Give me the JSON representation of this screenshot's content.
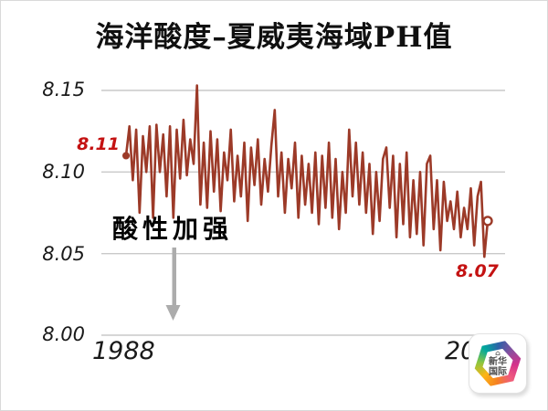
{
  "colors": {
    "background": "#FFFFFF",
    "gridline": "#C9C9C9",
    "line": "#9C3A28",
    "point_label_red": "#C41212",
    "arrow_gray": "#ACACAC"
  },
  "chart_data": {
    "type": "line",
    "title": "海洋酸度–夏威夷海域PH值",
    "xlabel": "",
    "ylabel": "",
    "grid": "horizontal",
    "legend": "none",
    "ylim": [
      8.0,
      8.15
    ],
    "y_tick_labels": [
      "8.15",
      "8.10",
      "8.05",
      "8.00"
    ],
    "y_tick_values": [
      8.15,
      8.1,
      8.05,
      8.0
    ],
    "x_tick_labels": [
      "1988",
      "20"
    ],
    "x_range_years": [
      1988,
      2015
    ],
    "series": [
      {
        "name": "夏威夷海域PH值",
        "color": "#9C3A28",
        "values": [
          8.11,
          8.128,
          8.095,
          8.126,
          8.075,
          8.122,
          8.1,
          8.128,
          8.072,
          8.129,
          8.1,
          8.123,
          8.085,
          8.128,
          8.072,
          8.126,
          8.096,
          8.132,
          8.098,
          8.12,
          8.105,
          8.153,
          8.08,
          8.118,
          8.078,
          8.125,
          8.088,
          8.12,
          8.076,
          8.112,
          8.095,
          8.126,
          8.082,
          8.11,
          8.085,
          8.118,
          8.07,
          8.115,
          8.092,
          8.12,
          8.08,
          8.108,
          8.088,
          8.116,
          8.138,
          8.085,
          8.112,
          8.075,
          8.108,
          8.09,
          8.118,
          8.072,
          8.11,
          8.08,
          8.105,
          8.075,
          8.112,
          8.068,
          8.11,
          8.078,
          8.118,
          8.072,
          8.108,
          8.065,
          8.1,
          8.075,
          8.126,
          8.085,
          8.118,
          8.08,
          8.112,
          8.075,
          8.105,
          8.062,
          8.1,
          8.07,
          8.108,
          8.115,
          8.078,
          8.11,
          8.06,
          8.105,
          8.068,
          8.112,
          8.06,
          8.095,
          8.062,
          8.1,
          8.055,
          8.105,
          8.11,
          8.065,
          8.095,
          8.052,
          8.094,
          8.07,
          8.082,
          8.065,
          8.088,
          8.06,
          8.078,
          8.065,
          8.09,
          8.055,
          8.085,
          8.094,
          8.048,
          8.07
        ]
      }
    ],
    "annotations": {
      "start_label": {
        "text": "8.11",
        "value": 8.11,
        "color": "#C41212"
      },
      "end_label": {
        "text": "8.07",
        "value": 8.07,
        "color": "#C41212"
      },
      "trend_note": {
        "text": "酸性加强",
        "arrow": "down"
      }
    }
  },
  "watermark_logo": {
    "line1": "新华",
    "line2": "国际",
    "emblem_icon": "pavilion-icon",
    "ring_colors": [
      "#00A99D",
      "#2E61A8",
      "#8A4E9E",
      "#D4328C",
      "#EF5A7E",
      "#F58220",
      "#FDB515",
      "#8DC63F",
      "#00A99D"
    ]
  }
}
